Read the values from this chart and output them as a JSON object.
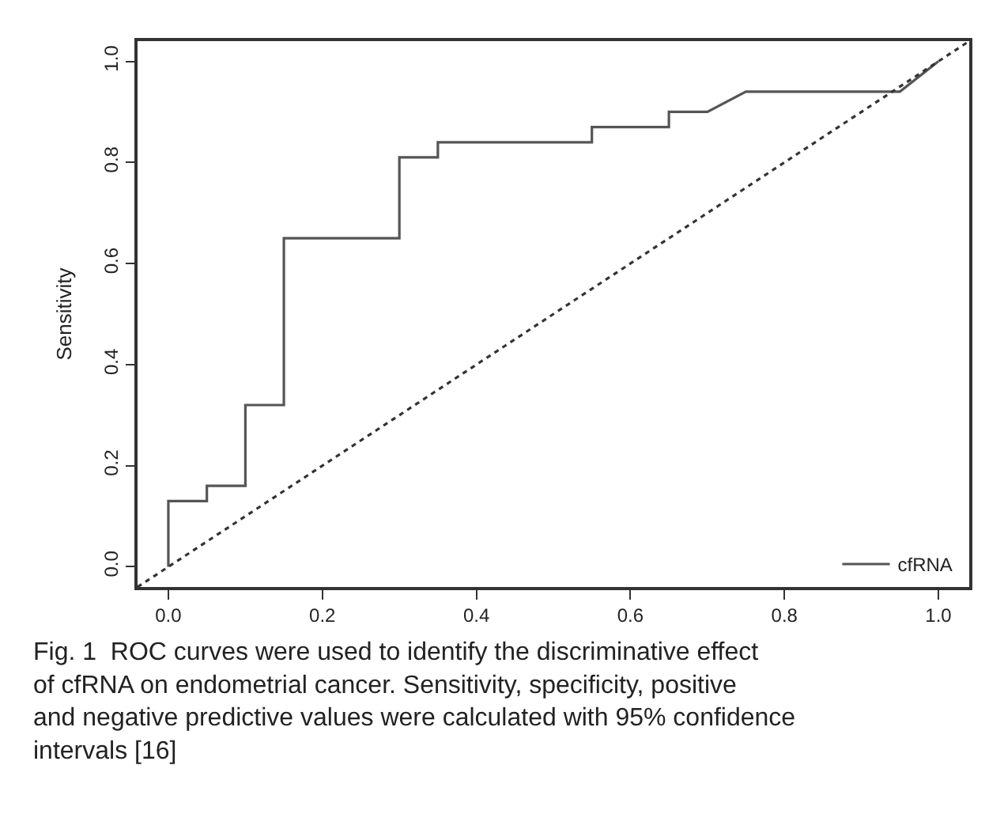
{
  "chart_data": {
    "type": "line",
    "ylabel": "Sensitivity",
    "xlim": [
      -0.04,
      1.04
    ],
    "ylim": [
      -0.04,
      1.04
    ],
    "xticks": [
      {
        "value": 0,
        "label": "0.0"
      },
      {
        "value": 0.2,
        "label": "0.2"
      },
      {
        "value": 0.4,
        "label": "0.4"
      },
      {
        "value": 0.6,
        "label": "0.6"
      },
      {
        "value": 0.8,
        "label": "0.8"
      },
      {
        "value": 1,
        "label": "1.0"
      }
    ],
    "yticks": [
      {
        "value": 0,
        "label": "0.0"
      },
      {
        "value": 0.2,
        "label": "0.2"
      },
      {
        "value": 0.4,
        "label": "0.4"
      },
      {
        "value": 0.6,
        "label": "0.6"
      },
      {
        "value": 0.8,
        "label": "0.8"
      },
      {
        "value": 1,
        "label": "1.0"
      }
    ],
    "legend": "bottom right",
    "marker": "none",
    "series": [
      {
        "name": "cfRNA",
        "color": "#555555",
        "line_style": "solid",
        "x": [
          0,
          0,
          0.05,
          0.05,
          0.1,
          0.1,
          0.15,
          0.15,
          0.3,
          0.3,
          0.35,
          0.35,
          0.55,
          0.55,
          0.65,
          0.65,
          0.7,
          0.75,
          0.95,
          1
        ],
        "values": [
          0,
          0.13,
          0.13,
          0.16,
          0.16,
          0.32,
          0.32,
          0.65,
          0.65,
          0.81,
          0.81,
          0.84,
          0.84,
          0.87,
          0.87,
          0.9,
          0.9,
          0.94,
          0.94,
          1
        ]
      },
      {
        "color": "#333333",
        "line_style": "dotted",
        "x": [
          -0.04,
          1.04
        ],
        "values": [
          -0.04,
          1.04
        ]
      }
    ],
    "annotations": [
      "Fig. 1  ROC curves were used to identify the discriminative effect of cfRNA on endometrial cancer. Sensitivity, specificity, positive and negative predictive values were calculated with 95% confidence intervals [16]"
    ]
  }
}
